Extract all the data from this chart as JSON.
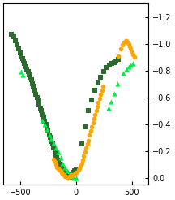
{
  "xlim": [
    -650,
    650
  ],
  "ylim": [
    0.05,
    -1.3
  ],
  "xticks": [
    -500,
    0,
    500
  ],
  "yticks": [
    -1.2,
    -1.0,
    -0.8,
    -0.6,
    -0.4,
    -0.2,
    0.0
  ],
  "bg_color": "#ffffff",
  "series": [
    {
      "name": "dark_green_squares",
      "color": "#2d6a2d",
      "marker": "s",
      "size": 16,
      "x": [
        -580,
        -560,
        -545,
        -530,
        -515,
        -500,
        -490,
        -480,
        -470,
        -460,
        -450,
        -440,
        -430,
        -420,
        -410,
        -400,
        -390,
        -380,
        -370,
        -360,
        -350,
        -340,
        -330,
        -320,
        -310,
        -300,
        -290,
        -280,
        -270,
        -260,
        -250,
        -240,
        -230,
        -220,
        -210,
        -200,
        -190,
        -180,
        -170,
        -160,
        -150,
        -140,
        -130,
        -120,
        -110,
        -100,
        -90,
        -80,
        -70,
        -60,
        -50,
        -40,
        -30,
        -20,
        -10,
        0,
        50,
        80,
        110,
        140,
        170,
        200,
        220,
        250,
        270,
        300,
        320,
        340,
        360,
        380
      ],
      "y": [
        -1.07,
        -1.05,
        -1.02,
        -0.99,
        -0.96,
        -0.93,
        -0.91,
        -0.89,
        -0.87,
        -0.85,
        -0.83,
        -0.81,
        -0.79,
        -0.77,
        -0.75,
        -0.73,
        -0.7,
        -0.68,
        -0.65,
        -0.62,
        -0.6,
        -0.58,
        -0.55,
        -0.52,
        -0.5,
        -0.47,
        -0.45,
        -0.42,
        -0.4,
        -0.37,
        -0.35,
        -0.32,
        -0.3,
        -0.27,
        -0.25,
        -0.22,
        -0.2,
        -0.17,
        -0.15,
        -0.13,
        -0.1,
        -0.08,
        -0.07,
        -0.05,
        -0.04,
        -0.03,
        -0.02,
        -0.01,
        0.0,
        0.0,
        -0.01,
        -0.02,
        -0.03,
        -0.04,
        -0.05,
        -0.06,
        -0.25,
        -0.38,
        -0.5,
        -0.58,
        -0.65,
        -0.71,
        -0.75,
        -0.79,
        -0.82,
        -0.84,
        -0.85,
        -0.86,
        -0.87,
        -0.88
      ]
    },
    {
      "name": "bright_green_triangles",
      "color": "#00ee44",
      "marker": "^",
      "size": 20,
      "x": [
        -490,
        -475,
        -300,
        -280,
        -260,
        -240,
        -220,
        -200,
        -180,
        -160,
        -140,
        -120,
        -100,
        -80,
        -60,
        -40,
        -20,
        0,
        290,
        310,
        340,
        370,
        420,
        450,
        470,
        490,
        510
      ],
      "y": [
        -0.79,
        -0.77,
        -0.43,
        -0.4,
        -0.36,
        -0.32,
        -0.29,
        -0.26,
        -0.22,
        -0.19,
        -0.15,
        -0.11,
        -0.08,
        -0.05,
        -0.03,
        -0.01,
        0.0,
        0.0,
        -0.52,
        -0.57,
        -0.63,
        -0.7,
        -0.78,
        -0.81,
        -0.83,
        -0.84,
        -0.85
      ]
    },
    {
      "name": "orange_circles",
      "color": "#ffa500",
      "marker": "o",
      "size": 16,
      "x": [
        -200,
        -190,
        -180,
        -170,
        -160,
        -150,
        -140,
        -130,
        -120,
        -110,
        -100,
        -90,
        -80,
        -70,
        -60,
        -50,
        -40,
        -30,
        -20,
        -10,
        0,
        20,
        30,
        40,
        50,
        60,
        70,
        80,
        90,
        100,
        110,
        120,
        130,
        140,
        150,
        160,
        170,
        180,
        190,
        200,
        210,
        220,
        230,
        240,
        380,
        400,
        415,
        430,
        440,
        450,
        460,
        470,
        480,
        490,
        500,
        510,
        520
      ],
      "y": [
        -0.14,
        -0.12,
        -0.1,
        -0.08,
        -0.07,
        -0.06,
        -0.05,
        -0.04,
        -0.03,
        -0.02,
        -0.01,
        -0.01,
        0.0,
        0.0,
        -0.01,
        -0.01,
        -0.02,
        -0.02,
        -0.02,
        -0.03,
        -0.04,
        -0.06,
        -0.07,
        -0.09,
        -0.11,
        -0.13,
        -0.16,
        -0.19,
        -0.22,
        -0.25,
        -0.28,
        -0.32,
        -0.35,
        -0.38,
        -0.41,
        -0.44,
        -0.47,
        -0.5,
        -0.53,
        -0.56,
        -0.59,
        -0.62,
        -0.65,
        -0.68,
        -0.91,
        -0.96,
        -0.99,
        -1.01,
        -1.02,
        -1.02,
        -1.01,
        -1.0,
        -0.98,
        -0.96,
        -0.94,
        -0.92,
        -0.9
      ]
    }
  ]
}
